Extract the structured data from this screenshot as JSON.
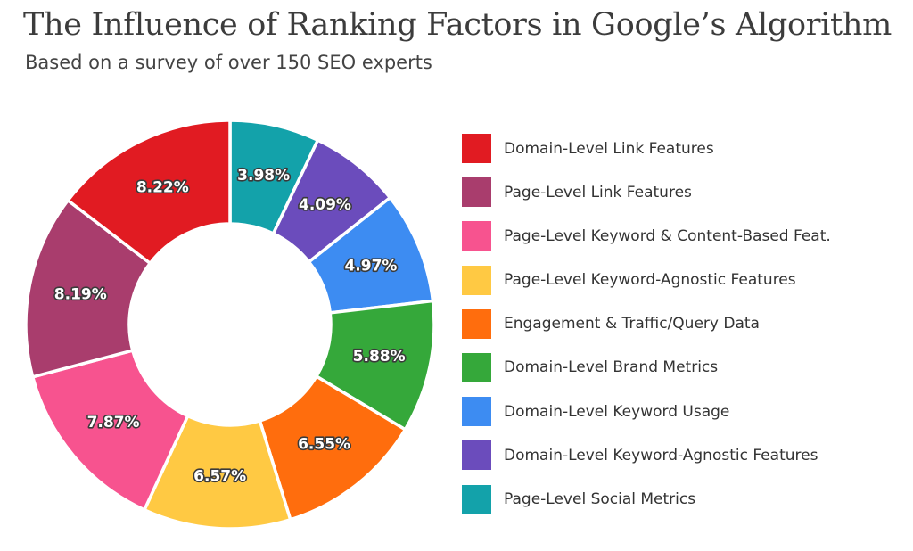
{
  "title": "The Influence of Ranking Factors in Google’s Algorithm",
  "subtitle": "Based on a survey of over 150 SEO experts",
  "chart_data": {
    "type": "pie",
    "variant": "donut",
    "slices": [
      {
        "label": "Page-Level Social Metrics",
        "value": 3.98,
        "value_label": "3.98%",
        "color": "#13a2aa"
      },
      {
        "label": "Domain-Level Keyword-Agnostic Features",
        "value": 4.09,
        "value_label": "4.09%",
        "color": "#6b4cbc"
      },
      {
        "label": "Domain-Level Keyword Usage",
        "value": 4.97,
        "value_label": "4.97%",
        "color": "#3d8cf2"
      },
      {
        "label": "Domain-Level Brand Metrics",
        "value": 5.88,
        "value_label": "5.88%",
        "color": "#35a83a"
      },
      {
        "label": "Engagement & Traffic/Query Data",
        "value": 6.55,
        "value_label": "6.55%",
        "color": "#ff6d0d"
      },
      {
        "label": "Page-Level Keyword-Agnostic Features",
        "value": 6.57,
        "value_label": "6.57%",
        "color": "#ffc943"
      },
      {
        "label": "Page-Level Keyword & Content-Based Feat.",
        "value": 7.87,
        "value_label": "7.87%",
        "color": "#f7538f"
      },
      {
        "label": "Page-Level Link Features",
        "value": 8.19,
        "value_label": "8.19%",
        "color": "#a93d6d"
      },
      {
        "label": "Domain-Level Link Features",
        "value": 8.22,
        "value_label": "8.22%",
        "color": "#e11b22"
      }
    ],
    "legend": [
      {
        "label": "Domain-Level Link Features",
        "color": "#e11b22"
      },
      {
        "label": "Page-Level Link Features",
        "color": "#a93d6d"
      },
      {
        "label": "Page-Level Keyword & Content-Based Feat.",
        "color": "#f7538f"
      },
      {
        "label": "Page-Level Keyword-Agnostic Features",
        "color": "#ffc943"
      },
      {
        "label": "Engagement & Traffic/Query Data",
        "color": "#ff6d0d"
      },
      {
        "label": "Domain-Level Brand Metrics",
        "color": "#35a83a"
      },
      {
        "label": "Domain-Level Keyword Usage",
        "color": "#3d8cf2"
      },
      {
        "label": "Domain-Level Keyword-Agnostic Features",
        "color": "#6b4cbc"
      },
      {
        "label": "Page-Level Social Metrics",
        "color": "#13a2aa"
      }
    ],
    "legend_placement": "right"
  }
}
